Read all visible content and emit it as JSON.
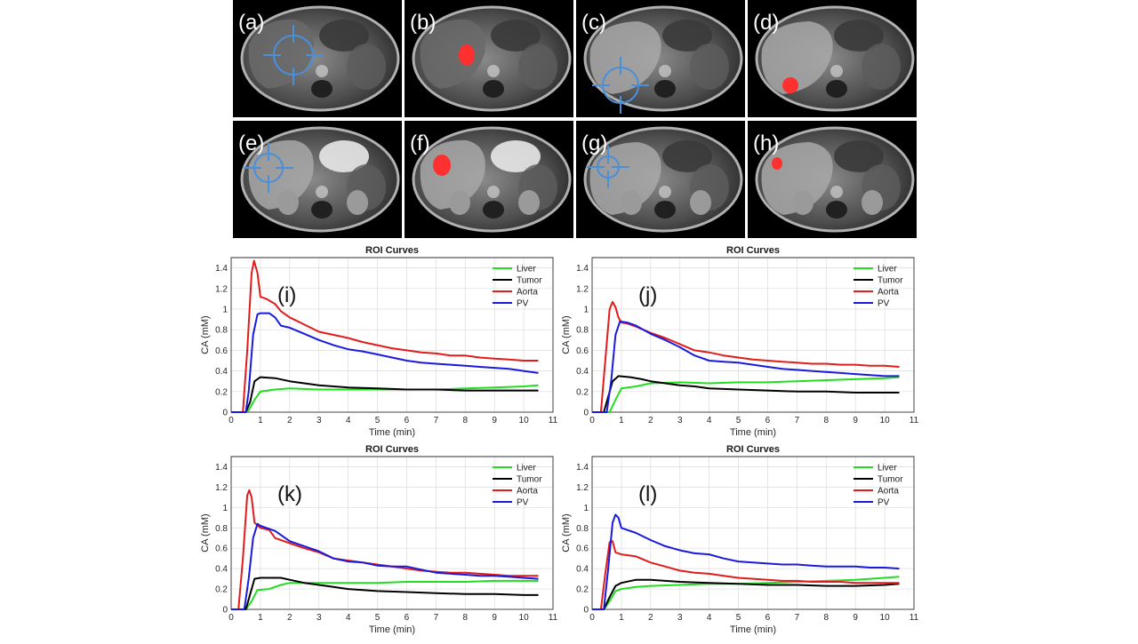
{
  "panels": [
    {
      "label": "(a)",
      "mode": "crosshair"
    },
    {
      "label": "(b)",
      "mode": "roi"
    },
    {
      "label": "(c)",
      "mode": "crosshair"
    },
    {
      "label": "(d)",
      "mode": "roi"
    },
    {
      "label": "(e)",
      "mode": "crosshair"
    },
    {
      "label": "(f)",
      "mode": "roi"
    },
    {
      "label": "(g)",
      "mode": "crosshair"
    },
    {
      "label": "(h)",
      "mode": "roi"
    }
  ],
  "colors": {
    "liver": "#22dd22",
    "tumor": "#000000",
    "aorta": "#e21b1b",
    "pv": "#1a1adf",
    "roi": "#ff3030",
    "crosshair": "#4a8fd8"
  },
  "chart_data": [
    {
      "type": "line",
      "panel_label": "(i)",
      "title": "ROI Curves",
      "xlabel": "Time (min)",
      "ylabel": "CA (mM)",
      "xlim": [
        0,
        11
      ],
      "ylim": [
        0,
        1.5
      ],
      "xticks": [
        "0",
        "1",
        "2",
        "3",
        "4",
        "5",
        "6",
        "7",
        "8",
        "9",
        "10",
        "11"
      ],
      "yticks": [
        "0",
        "0.2",
        "0.4",
        "0.6",
        "0.8",
        "1",
        "1.2",
        "1.4"
      ],
      "legend_position": "top-right",
      "grid": true,
      "series": [
        {
          "name": "Liver",
          "color": "#22dd22",
          "x": [
            0,
            0.5,
            0.6,
            0.8,
            1.0,
            1.5,
            2,
            3,
            4,
            5,
            6,
            7,
            8,
            9,
            10,
            10.5
          ],
          "y": [
            0,
            0,
            0.02,
            0.12,
            0.2,
            0.22,
            0.23,
            0.22,
            0.22,
            0.22,
            0.22,
            0.22,
            0.23,
            0.24,
            0.25,
            0.26
          ]
        },
        {
          "name": "Tumor",
          "color": "#000000",
          "x": [
            0,
            0.5,
            0.65,
            0.8,
            1.0,
            1.5,
            2,
            3,
            4,
            5,
            6,
            7,
            8,
            9,
            10,
            10.5
          ],
          "y": [
            0,
            0,
            0.1,
            0.3,
            0.34,
            0.33,
            0.3,
            0.26,
            0.24,
            0.23,
            0.22,
            0.22,
            0.21,
            0.21,
            0.21,
            0.21
          ]
        },
        {
          "name": "Aorta",
          "color": "#e21b1b",
          "x": [
            0,
            0.4,
            0.55,
            0.7,
            0.78,
            0.9,
            1.0,
            1.2,
            1.5,
            1.7,
            2,
            2.5,
            3,
            3.5,
            4,
            4.5,
            5,
            5.5,
            6,
            6.5,
            7,
            7.5,
            8,
            8.5,
            9,
            9.5,
            10,
            10.5
          ],
          "y": [
            0,
            0,
            0.6,
            1.35,
            1.47,
            1.35,
            1.12,
            1.1,
            1.05,
            0.98,
            0.92,
            0.85,
            0.78,
            0.75,
            0.72,
            0.68,
            0.65,
            0.62,
            0.6,
            0.58,
            0.57,
            0.55,
            0.55,
            0.53,
            0.52,
            0.51,
            0.5,
            0.5
          ]
        },
        {
          "name": "PV",
          "color": "#1a1adf",
          "x": [
            0,
            0.5,
            0.6,
            0.75,
            0.9,
            1.0,
            1.3,
            1.5,
            1.7,
            2,
            2.5,
            3,
            3.5,
            4,
            4.5,
            5,
            5.5,
            6,
            6.5,
            7,
            7.5,
            8,
            8.5,
            9,
            9.5,
            10,
            10.5
          ],
          "y": [
            0,
            0,
            0.2,
            0.75,
            0.95,
            0.96,
            0.96,
            0.92,
            0.84,
            0.82,
            0.76,
            0.7,
            0.65,
            0.61,
            0.59,
            0.56,
            0.53,
            0.5,
            0.48,
            0.47,
            0.46,
            0.45,
            0.44,
            0.43,
            0.42,
            0.4,
            0.38
          ]
        }
      ]
    },
    {
      "type": "line",
      "panel_label": "(j)",
      "title": "ROI Curves",
      "xlabel": "Time (min)",
      "ylabel": "CA (mM)",
      "xlim": [
        0,
        11
      ],
      "ylim": [
        0,
        1.5
      ],
      "xticks": [
        "0",
        "1",
        "2",
        "3",
        "4",
        "5",
        "6",
        "7",
        "8",
        "9",
        "10",
        "11"
      ],
      "yticks": [
        "0",
        "0.2",
        "0.4",
        "0.6",
        "0.8",
        "1",
        "1.2",
        "1.4"
      ],
      "legend_position": "top-right",
      "grid": true,
      "series": [
        {
          "name": "Liver",
          "color": "#22dd22",
          "x": [
            0,
            0.6,
            0.8,
            1.0,
            1.5,
            2,
            3,
            4,
            5,
            6,
            7,
            8,
            9,
            10,
            10.5
          ],
          "y": [
            0,
            0,
            0.12,
            0.23,
            0.25,
            0.28,
            0.29,
            0.28,
            0.29,
            0.29,
            0.3,
            0.31,
            0.32,
            0.33,
            0.34
          ]
        },
        {
          "name": "Tumor",
          "color": "#000000",
          "x": [
            0,
            0.4,
            0.55,
            0.7,
            0.9,
            1.3,
            1.7,
            2,
            2.5,
            3,
            3.5,
            4,
            5,
            6,
            7,
            8,
            9,
            10,
            10.5
          ],
          "y": [
            0,
            0,
            0.15,
            0.3,
            0.35,
            0.34,
            0.32,
            0.3,
            0.28,
            0.26,
            0.25,
            0.23,
            0.22,
            0.21,
            0.2,
            0.2,
            0.19,
            0.19,
            0.19
          ]
        },
        {
          "name": "Aorta",
          "color": "#e21b1b",
          "x": [
            0,
            0.3,
            0.45,
            0.6,
            0.7,
            0.8,
            0.9,
            1.0,
            1.2,
            1.5,
            2,
            2.5,
            3,
            3.5,
            4,
            4.5,
            5,
            5.5,
            6,
            6.5,
            7,
            7.5,
            8,
            8.5,
            9,
            9.5,
            10,
            10.5
          ],
          "y": [
            0,
            0,
            0.5,
            1.0,
            1.07,
            1.02,
            0.92,
            0.87,
            0.86,
            0.83,
            0.77,
            0.72,
            0.66,
            0.6,
            0.58,
            0.55,
            0.53,
            0.51,
            0.5,
            0.49,
            0.48,
            0.47,
            0.47,
            0.46,
            0.46,
            0.45,
            0.45,
            0.44
          ]
        },
        {
          "name": "PV",
          "color": "#1a1adf",
          "x": [
            0,
            0.5,
            0.65,
            0.8,
            0.95,
            1.2,
            1.5,
            2,
            2.5,
            3,
            3.5,
            4,
            4.5,
            5,
            5.5,
            6,
            6.5,
            7,
            7.5,
            8,
            8.5,
            9,
            9.5,
            10,
            10.5
          ],
          "y": [
            0,
            0,
            0.3,
            0.75,
            0.88,
            0.87,
            0.84,
            0.76,
            0.7,
            0.63,
            0.55,
            0.5,
            0.49,
            0.48,
            0.46,
            0.44,
            0.42,
            0.41,
            0.4,
            0.39,
            0.38,
            0.37,
            0.36,
            0.35,
            0.35
          ]
        }
      ]
    },
    {
      "type": "line",
      "panel_label": "(k)",
      "title": "ROI Curves",
      "xlabel": "Time (min)",
      "ylabel": "CA (mM)",
      "xlim": [
        0,
        11
      ],
      "ylim": [
        0,
        1.5
      ],
      "xticks": [
        "0",
        "1",
        "2",
        "3",
        "4",
        "5",
        "6",
        "7",
        "8",
        "9",
        "10",
        "11"
      ],
      "yticks": [
        "0",
        "0.2",
        "0.4",
        "0.6",
        "0.8",
        "1",
        "1.2",
        "1.4"
      ],
      "legend_position": "top-right",
      "grid": true,
      "series": [
        {
          "name": "Liver",
          "color": "#22dd22",
          "x": [
            0,
            0.5,
            0.7,
            0.9,
            1.3,
            1.7,
            2,
            2.5,
            3,
            4,
            5,
            6,
            7,
            8,
            9,
            10,
            10.5
          ],
          "y": [
            0,
            0,
            0.08,
            0.19,
            0.2,
            0.24,
            0.26,
            0.26,
            0.26,
            0.26,
            0.26,
            0.27,
            0.27,
            0.27,
            0.28,
            0.28,
            0.28
          ]
        },
        {
          "name": "Tumor",
          "color": "#000000",
          "x": [
            0,
            0.5,
            0.65,
            0.8,
            1.0,
            1.7,
            2,
            2.5,
            3,
            3.5,
            4,
            5,
            6,
            7,
            8,
            9,
            10,
            10.5
          ],
          "y": [
            0,
            0,
            0.15,
            0.3,
            0.31,
            0.31,
            0.29,
            0.26,
            0.24,
            0.22,
            0.2,
            0.18,
            0.17,
            0.16,
            0.15,
            0.15,
            0.14,
            0.14
          ]
        },
        {
          "name": "Aorta",
          "color": "#e21b1b",
          "x": [
            0,
            0.25,
            0.4,
            0.55,
            0.62,
            0.7,
            0.8,
            1.0,
            1.3,
            1.5,
            2,
            2.5,
            3,
            3.5,
            4,
            4.5,
            5,
            5.5,
            6,
            6.5,
            7,
            7.5,
            8,
            8.5,
            9,
            9.5,
            10,
            10.5
          ],
          "y": [
            0,
            0,
            0.5,
            1.12,
            1.17,
            1.1,
            0.85,
            0.8,
            0.78,
            0.7,
            0.65,
            0.6,
            0.56,
            0.5,
            0.48,
            0.46,
            0.44,
            0.42,
            0.4,
            0.38,
            0.37,
            0.36,
            0.36,
            0.35,
            0.34,
            0.33,
            0.33,
            0.33
          ]
        },
        {
          "name": "PV",
          "color": "#1a1adf",
          "x": [
            0,
            0.45,
            0.6,
            0.75,
            0.9,
            1.0,
            1.5,
            2,
            2.5,
            3,
            3.5,
            4,
            4.5,
            5,
            5.5,
            6,
            6.5,
            7,
            7.5,
            8,
            8.5,
            9,
            9.5,
            10,
            10.5
          ],
          "y": [
            0,
            0,
            0.3,
            0.7,
            0.84,
            0.82,
            0.77,
            0.67,
            0.62,
            0.57,
            0.5,
            0.47,
            0.46,
            0.43,
            0.42,
            0.42,
            0.39,
            0.36,
            0.35,
            0.34,
            0.33,
            0.33,
            0.32,
            0.31,
            0.3
          ]
        }
      ]
    },
    {
      "type": "line",
      "panel_label": "(l)",
      "title": "ROI Curves",
      "xlabel": "Time (min)",
      "ylabel": "CA (mM)",
      "xlim": [
        0,
        11
      ],
      "ylim": [
        0,
        1.5
      ],
      "xticks": [
        "0",
        "1",
        "2",
        "3",
        "4",
        "5",
        "6",
        "7",
        "8",
        "9",
        "10",
        "11"
      ],
      "yticks": [
        "0",
        "0.2",
        "0.4",
        "0.6",
        "0.8",
        "1",
        "1.2",
        "1.4"
      ],
      "legend_position": "top-right",
      "grid": true,
      "series": [
        {
          "name": "Liver",
          "color": "#22dd22",
          "x": [
            0,
            0.4,
            0.6,
            0.8,
            1.0,
            1.5,
            2,
            3,
            4,
            5,
            6,
            7,
            8,
            9,
            10,
            10.5
          ],
          "y": [
            0,
            0,
            0.08,
            0.18,
            0.2,
            0.22,
            0.23,
            0.24,
            0.25,
            0.25,
            0.26,
            0.27,
            0.28,
            0.29,
            0.31,
            0.32
          ]
        },
        {
          "name": "Tumor",
          "color": "#000000",
          "x": [
            0,
            0.4,
            0.6,
            0.8,
            1.0,
            1.5,
            2,
            3,
            4,
            5,
            6,
            7,
            8,
            9,
            10,
            10.5
          ],
          "y": [
            0,
            0,
            0.12,
            0.23,
            0.26,
            0.29,
            0.29,
            0.27,
            0.26,
            0.25,
            0.24,
            0.24,
            0.23,
            0.23,
            0.24,
            0.25
          ]
        },
        {
          "name": "Aorta",
          "color": "#e21b1b",
          "x": [
            0,
            0.3,
            0.45,
            0.6,
            0.7,
            0.8,
            1.0,
            1.5,
            2,
            2.5,
            3,
            3.5,
            4,
            4.5,
            5,
            5.5,
            6,
            6.5,
            7,
            7.5,
            8,
            8.5,
            9,
            9.5,
            10,
            10.5
          ],
          "y": [
            0,
            0,
            0.35,
            0.66,
            0.67,
            0.56,
            0.54,
            0.52,
            0.46,
            0.42,
            0.38,
            0.36,
            0.35,
            0.33,
            0.31,
            0.3,
            0.29,
            0.28,
            0.28,
            0.27,
            0.27,
            0.27,
            0.26,
            0.26,
            0.26,
            0.26
          ]
        },
        {
          "name": "PV",
          "color": "#1a1adf",
          "x": [
            0,
            0.4,
            0.55,
            0.7,
            0.8,
            0.9,
            1.0,
            1.5,
            2,
            2.5,
            3,
            3.5,
            4,
            4.5,
            5,
            5.5,
            6,
            6.5,
            7,
            7.5,
            8,
            8.5,
            9,
            9.5,
            10,
            10.5
          ],
          "y": [
            0,
            0,
            0.4,
            0.85,
            0.93,
            0.9,
            0.8,
            0.75,
            0.68,
            0.62,
            0.58,
            0.55,
            0.54,
            0.5,
            0.47,
            0.46,
            0.45,
            0.44,
            0.44,
            0.43,
            0.42,
            0.42,
            0.42,
            0.41,
            0.41,
            0.4
          ]
        }
      ]
    }
  ]
}
